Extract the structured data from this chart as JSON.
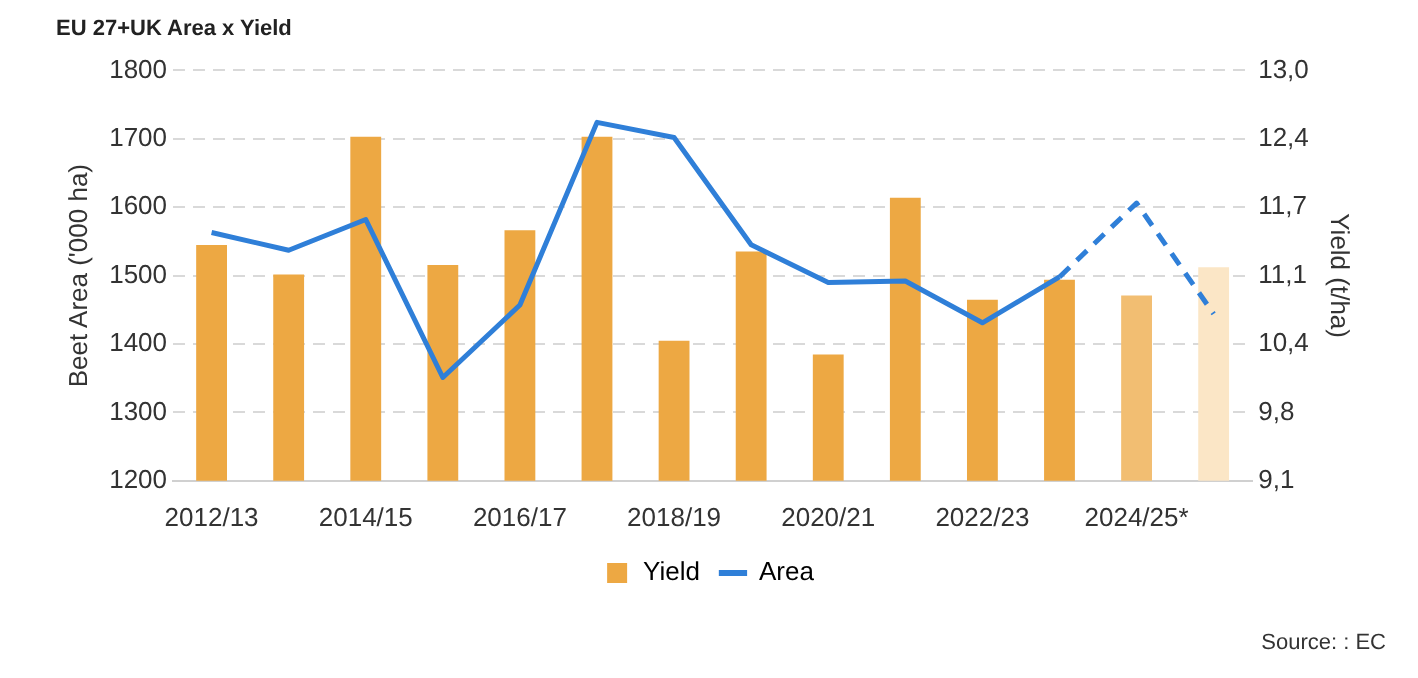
{
  "chart_data": {
    "type": "bar",
    "title": "EU 27+UK Area x Yield",
    "ylabel": "Beet Area ('000 ha)",
    "y2label": "Yield (t/ha)",
    "categories": [
      "2012/13",
      null,
      "2014/15",
      null,
      "2016/17",
      null,
      "2018/19",
      null,
      "2020/21",
      null,
      "2022/23",
      null,
      "2024/25*",
      null
    ],
    "series": [
      {
        "name": "Yield",
        "axis": "y2",
        "colors": [
          "#eda843",
          "#eda843",
          "#eda843",
          "#eda843",
          "#eda843",
          "#eda843",
          "#eda843",
          "#eda843",
          "#eda843",
          "#eda843",
          "#eda843",
          "#eda843",
          "#f2be72",
          "#fbe6c6"
        ],
        "values": [
          11.34,
          11.06,
          12.37,
          11.15,
          11.48,
          12.37,
          10.43,
          11.28,
          10.3,
          11.79,
          10.82,
          11.01,
          10.86,
          11.13
        ]
      },
      {
        "name": "Area",
        "type": "line",
        "color": "#2f7fd8",
        "line_style": "solid",
        "values": [
          1563,
          1537,
          1582,
          1351,
          1457,
          1724,
          1702,
          1545,
          1490,
          1492,
          1431,
          1498,
          null,
          null
        ]
      },
      {
        "type": "line",
        "color": "#2f7fd8",
        "line_style": "dashed",
        "values": [
          null,
          null,
          null,
          null,
          null,
          null,
          null,
          null,
          null,
          null,
          null,
          1498,
          1606,
          1444
        ]
      }
    ],
    "ylim": [
      1200,
      1800
    ],
    "yticks": [
      1200,
      1300,
      1400,
      1500,
      1600,
      1700,
      1800
    ],
    "y2lim": [
      9.1,
      13.0
    ],
    "y2ticks": [
      {
        "value": 9.1,
        "label": "9,1"
      },
      {
        "value": 9.75,
        "label": "9,8"
      },
      {
        "value": 10.4,
        "label": "10,4"
      },
      {
        "value": 11.05,
        "label": "11,1"
      },
      {
        "value": 11.7,
        "label": "11,7"
      },
      {
        "value": 12.35,
        "label": "12,4"
      },
      {
        "value": 13.0,
        "label": "13,0"
      }
    ],
    "grid": "y",
    "legend": "bottom",
    "marker": "none",
    "annotations": [
      "Source: : EC"
    ]
  }
}
